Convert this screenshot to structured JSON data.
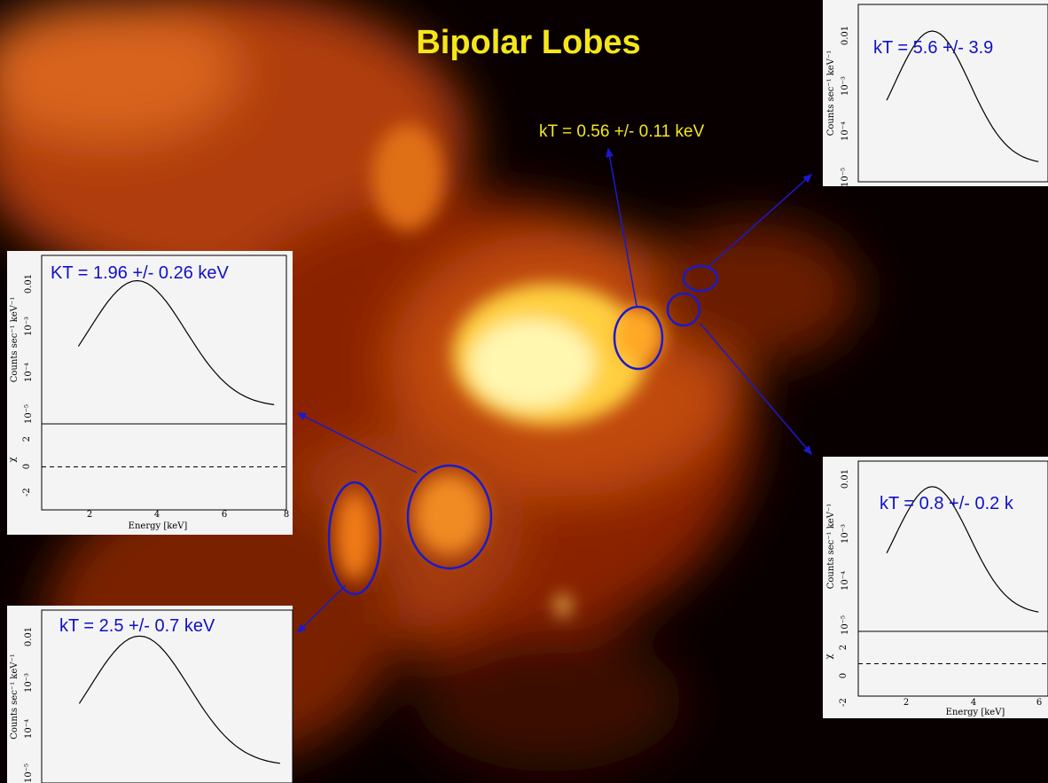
{
  "title": "Bipolar Lobes",
  "annotation": "kT = 0.56 +/- 0.11 keV",
  "insets": [
    {
      "label": "KT = 1.96 +/- 0.26 keV",
      "y_axis_label": "Counts sec⁻¹ keV⁻¹",
      "y_ticks": [
        "0.01",
        "10⁻³",
        "10⁻⁴",
        "10⁻⁵"
      ],
      "residual_axis_label": "χ",
      "residual_ticks": [
        "2",
        "0",
        "-2"
      ],
      "x_ticks": [
        "2",
        "4",
        "6",
        "8"
      ],
      "x_axis_label": "Energy [keV]"
    },
    {
      "label": "kT = 2.5 +/- 0.7 keV",
      "y_axis_label": "Counts sec⁻¹ keV⁻¹",
      "y_ticks": [
        "0.01",
        "10⁻³",
        "10⁻⁴",
        "10⁻⁵"
      ]
    },
    {
      "label": "kT = 5.6 +/- 3.9",
      "y_axis_label": "Counts sec⁻¹ keV⁻¹",
      "y_ticks": [
        "0.01",
        "10⁻³",
        "10⁻⁴",
        "10⁻⁵"
      ]
    },
    {
      "label": "kT = 0.8 +/- 0.2 k",
      "y_axis_label": "Counts sec⁻¹ keV⁻¹",
      "y_ticks": [
        "0.01",
        "10⁻³",
        "10⁻⁴",
        "10⁻⁵"
      ],
      "residual_axis_label": "χ",
      "residual_ticks": [
        "2",
        "0",
        "-2"
      ],
      "x_ticks": [
        "2",
        "4",
        "6"
      ],
      "x_axis_label": "Energy [keV]"
    }
  ]
}
